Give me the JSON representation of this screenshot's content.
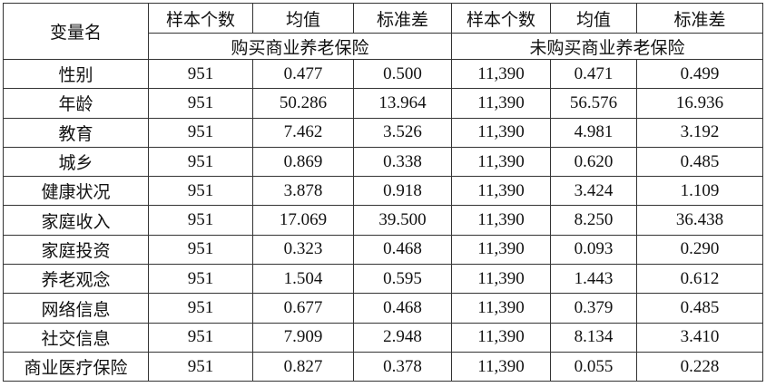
{
  "table": {
    "header": {
      "variable": "变量名",
      "columns": [
        "样本个数",
        "均值",
        "标准差",
        "样本个数",
        "均值",
        "标准差"
      ],
      "groups": [
        "购买商业养老保险",
        "未购买商业养老保险"
      ]
    },
    "rows": [
      [
        "性别",
        "951",
        "0.477",
        "0.500",
        "11,390",
        "0.471",
        "0.499"
      ],
      [
        "年龄",
        "951",
        "50.286",
        "13.964",
        "11,390",
        "56.576",
        "16.936"
      ],
      [
        "教育",
        "951",
        "7.462",
        "3.526",
        "11,390",
        "4.981",
        "3.192"
      ],
      [
        "城乡",
        "951",
        "0.869",
        "0.338",
        "11,390",
        "0.620",
        "0.485"
      ],
      [
        "健康状况",
        "951",
        "3.878",
        "0.918",
        "11,390",
        "3.424",
        "1.109"
      ],
      [
        "家庭收入",
        "951",
        "17.069",
        "39.500",
        "11,390",
        "8.250",
        "36.438"
      ],
      [
        "家庭投资",
        "951",
        "0.323",
        "0.468",
        "11,390",
        "0.093",
        "0.290"
      ],
      [
        "养老观念",
        "951",
        "1.504",
        "0.595",
        "11,390",
        "1.443",
        "0.612"
      ],
      [
        "网络信息",
        "951",
        "0.677",
        "0.468",
        "11,390",
        "0.379",
        "0.485"
      ],
      [
        "社交信息",
        "951",
        "7.909",
        "2.948",
        "11,390",
        "8.134",
        "3.410"
      ],
      [
        "商业医疗保险",
        "951",
        "0.827",
        "0.378",
        "11,390",
        "0.055",
        "0.228"
      ]
    ]
  }
}
